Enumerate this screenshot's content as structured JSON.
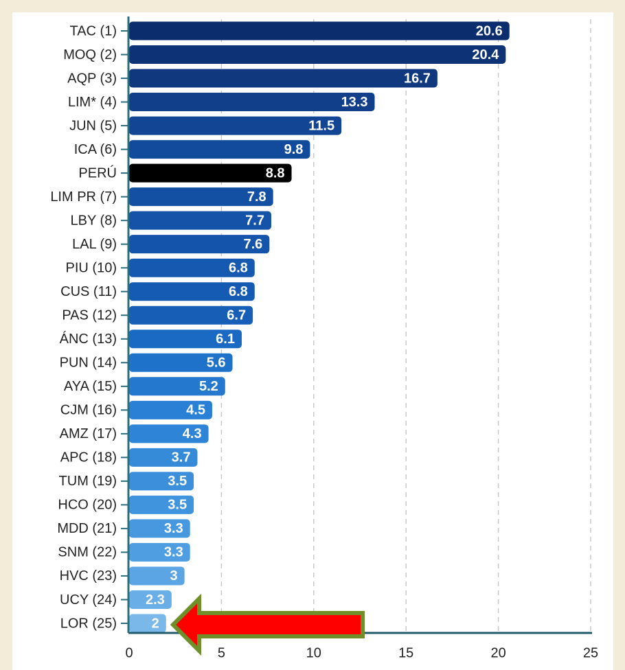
{
  "chart_data": {
    "type": "barh",
    "categories": [
      "TAC (1)",
      "MOQ (2)",
      "AQP (3)",
      "LIM* (4)",
      "JUN (5)",
      "ICA (6)",
      "PERÚ",
      "LIM PR (7)",
      "LBY (8)",
      "LAL (9)",
      "PIU (10)",
      "CUS (11)",
      "PAS (12)",
      "ÁNC (13)",
      "PUN (14)",
      "AYA (15)",
      "CJM (16)",
      "AMZ (17)",
      "APC (18)",
      "TUM (19)",
      "HCO (20)",
      "MDD (21)",
      "SNM (22)",
      "HVC (23)",
      "UCY (24)",
      "LOR (25)"
    ],
    "values": [
      20.6,
      20.4,
      16.7,
      13.3,
      11.5,
      9.8,
      8.8,
      7.8,
      7.7,
      7.6,
      6.8,
      6.8,
      6.7,
      6.1,
      5.6,
      5.2,
      4.5,
      4.3,
      3.7,
      3.5,
      3.5,
      3.3,
      3.3,
      3,
      2.3,
      2
    ],
    "colors": [
      "#0b2d6e",
      "#0d3275",
      "#0f387f",
      "#113f8a",
      "#124594",
      "#134b9c",
      "#000000",
      "#1350a3",
      "#1453a8",
      "#1455ab",
      "#1559b0",
      "#165bb3",
      "#165eb6",
      "#1a6ac3",
      "#1f72c9",
      "#2479cf",
      "#2a80d4",
      "#2e84d6",
      "#368bd9",
      "#3b8fdb",
      "#4093dd",
      "#4898e0",
      "#509ee2",
      "#5ba5e4",
      "#69aee7",
      "#7ab8ea"
    ],
    "xlim": [
      0,
      25
    ],
    "xticks": [
      0,
      5,
      10,
      15,
      20,
      25
    ],
    "grid": true
  }
}
